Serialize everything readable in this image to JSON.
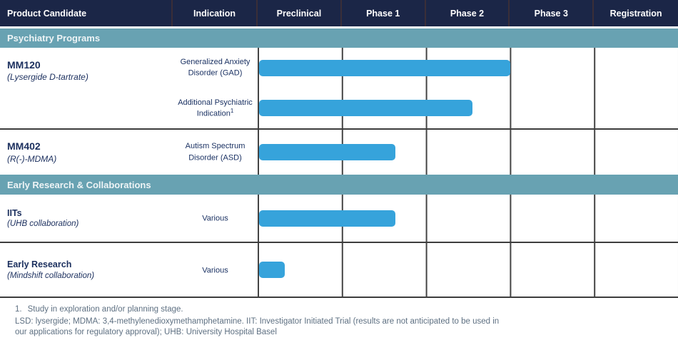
{
  "header": {
    "columns": [
      "Product Candidate",
      "Indication",
      "Preclinical",
      "Phase 1",
      "Phase 2",
      "Phase 3",
      "Registration"
    ]
  },
  "sections": [
    {
      "label": "Psychiatry Programs",
      "programs": [
        {
          "product": "MM120",
          "product_detail": "(Lysergide D-tartrate)",
          "entries": [
            {
              "indication": "Generalized Anxiety Disorder (GAD)",
              "footnote_sup": ""
            },
            {
              "indication": "Additional Psychiatric Indication",
              "footnote_sup": "1"
            }
          ]
        },
        {
          "product": "MM402",
          "product_detail": "(R(-)-MDMA)",
          "entries": [
            {
              "indication": "Autism Spectrum Disorder (ASD)",
              "footnote_sup": ""
            }
          ]
        }
      ]
    },
    {
      "label": "Early Research & Collaborations",
      "programs": [
        {
          "product": "IITs",
          "product_detail": "(UHB collaboration)",
          "entries": [
            {
              "indication": "Various",
              "footnote_sup": ""
            }
          ]
        },
        {
          "product": "Early Research",
          "product_detail": "(Mindshift collaboration)",
          "entries": [
            {
              "indication": "Various",
              "footnote_sup": ""
            }
          ]
        }
      ]
    }
  ],
  "chart_data": {
    "type": "gantt",
    "phases": [
      "Preclinical",
      "Phase 1",
      "Phase 2",
      "Phase 3",
      "Registration"
    ],
    "unit": "phase-column units: 0 = start of Preclinical, 5 = end of Registration",
    "series": [
      {
        "product": "MM120",
        "indication": "Generalized Anxiety Disorder (GAD)",
        "start_phase": 0,
        "end_phase": 3.0
      },
      {
        "product": "MM120",
        "indication": "Additional Psychiatric Indication",
        "start_phase": 0,
        "end_phase": 2.55
      },
      {
        "product": "MM402",
        "indication": "Autism Spectrum Disorder (ASD)",
        "start_phase": 0,
        "end_phase": 1.63
      },
      {
        "product": "IITs",
        "indication": "Various",
        "start_phase": 0,
        "end_phase": 1.63
      },
      {
        "product": "Early Research",
        "indication": "Various",
        "start_phase": 0,
        "end_phase": 0.31
      }
    ]
  },
  "footnotes": {
    "item_marker": "1.",
    "item_text": "Study in exploration and/or planning stage.",
    "abbreviations": "LSD: lysergide; MDMA: 3,4-methylenedioxymethamphetamine. IIT: Investigator Initiated Trial (results are not anticipated to be used in our applications for regulatory approval); UHB: University Hospital Basel"
  },
  "colors": {
    "header_bg": "#1b2647",
    "section_band_bg": "#68a2b2",
    "bar_fill": "#36a3db",
    "grid_line": "#444444",
    "product_text": "#1b2f5e",
    "footnote_text": "#5e7082"
  }
}
